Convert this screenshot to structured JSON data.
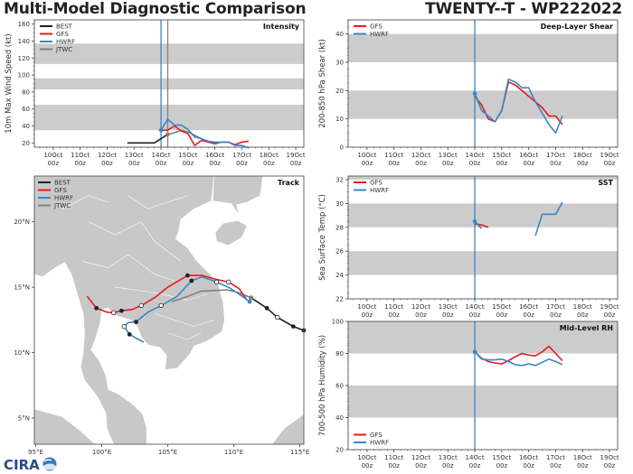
{
  "header": {
    "title": "Multi-Model Diagnostic Comparison",
    "storm": "TWENTY--T - WP222022"
  },
  "logo": {
    "text": "CIRA",
    "icon": "cira-logo-icon"
  },
  "colors": {
    "BEST": "#222222",
    "GFS": "#e41a1c",
    "HWRF": "#3a86c8",
    "JTWC": "#808080",
    "band": "#cccccc",
    "land": "#c8c8c8"
  },
  "time_axis": {
    "days": [
      10,
      11,
      12,
      13,
      14,
      15,
      16,
      17,
      18,
      19
    ],
    "labels": [
      "10Oct",
      "11Oct",
      "12Oct",
      "13Oct",
      "14Oct",
      "15Oct",
      "16Oct",
      "17Oct",
      "18Oct",
      "19Oct"
    ],
    "sublabel": "00z"
  },
  "chart_data": [
    {
      "id": "intensity",
      "type": "line",
      "title": "Intensity",
      "ylabel": "10m Max Wind Speed (kt)",
      "xlabel": "",
      "ylim": [
        15,
        165
      ],
      "yticks": [
        20,
        40,
        60,
        80,
        100,
        120,
        140,
        160
      ],
      "xlim": [
        9.3,
        19.3
      ],
      "bands": [
        [
          35,
          65
        ],
        [
          83,
          96
        ],
        [
          113,
          137
        ]
      ],
      "vlines": [
        {
          "x": 14.0,
          "color": "HWRF"
        },
        {
          "x": 14.25,
          "color": "JTWC"
        }
      ],
      "legend": [
        "BEST",
        "GFS",
        "HWRF",
        "JTWC"
      ],
      "legend_position": "top-left",
      "series": [
        {
          "name": "BEST",
          "x": [
            12.75,
            13.0,
            13.25,
            13.5,
            13.75,
            14.0,
            14.25
          ],
          "y": [
            20,
            20,
            20,
            20,
            20,
            25,
            30
          ]
        },
        {
          "name": "JTWC",
          "x": [
            14.25,
            14.5,
            14.75,
            15.0,
            15.25,
            15.5
          ],
          "y": [
            30,
            32,
            35,
            33,
            29,
            25
          ],
          "marker_first": true
        },
        {
          "name": "GFS",
          "x": [
            14.0,
            14.25,
            14.5,
            14.75,
            15.0,
            15.25,
            15.5,
            15.75,
            16.0,
            16.25,
            16.5,
            16.75,
            17.0,
            17.25
          ],
          "y": [
            35,
            35,
            40,
            34,
            31,
            17,
            23,
            21,
            19,
            21,
            21,
            18,
            21,
            22
          ]
        },
        {
          "name": "HWRF",
          "x": [
            14.0,
            14.25,
            14.5,
            14.75,
            15.0,
            15.25,
            15.5,
            15.75,
            16.0,
            16.25,
            16.5,
            16.75,
            17.0,
            17.25
          ],
          "y": [
            35,
            48,
            41,
            41,
            36,
            27,
            25,
            22,
            21,
            21,
            21,
            17,
            17,
            14
          ],
          "marker_first": true
        }
      ]
    },
    {
      "id": "shear",
      "type": "line",
      "title": "Deep-Layer Shear",
      "ylabel": "200-850 hPa Shear (kt)",
      "xlabel": "",
      "ylim": [
        0,
        45
      ],
      "yticks": [
        0,
        10,
        20,
        30,
        40
      ],
      "xlim": [
        9.3,
        19.3
      ],
      "bands": [
        [
          10,
          20
        ],
        [
          30,
          40
        ]
      ],
      "vlines": [
        {
          "x": 14.0,
          "color": "HWRF"
        }
      ],
      "legend": [
        "GFS",
        "HWRF"
      ],
      "legend_position": "top-left",
      "series": [
        {
          "name": "GFS",
          "x": [
            14.0,
            14.25,
            14.5,
            14.75,
            15.0,
            15.25,
            15.5,
            15.75,
            16.0,
            16.25,
            16.5,
            16.75,
            17.0,
            17.25
          ],
          "y": [
            18,
            15,
            10,
            9,
            13,
            23,
            22,
            20,
            18,
            16,
            14,
            11,
            11,
            8
          ]
        },
        {
          "name": "HWRF",
          "x": [
            14.0,
            14.25,
            14.5,
            14.75,
            15.0,
            15.25,
            15.5,
            15.75,
            16.0,
            16.25,
            16.5,
            16.75,
            17.0,
            17.25
          ],
          "y": [
            19,
            13,
            11,
            9,
            13,
            24,
            23,
            21,
            21,
            16,
            12,
            8,
            5,
            11
          ],
          "marker_first": true
        }
      ]
    },
    {
      "id": "sst",
      "type": "line",
      "title": "SST",
      "ylabel": "Sea Surface Temp (°C)",
      "xlabel": "",
      "ylim": [
        22,
        32.3
      ],
      "yticks": [
        22,
        24,
        26,
        28,
        30,
        32
      ],
      "xlim": [
        9.3,
        19.3
      ],
      "bands": [
        [
          24,
          26
        ],
        [
          28,
          30
        ],
        [
          32,
          32.3
        ]
      ],
      "vlines": [
        {
          "x": 14.0,
          "color": "HWRF"
        }
      ],
      "legend": [
        "GFS",
        "HWRF"
      ],
      "legend_position": "top-left",
      "series": [
        {
          "name": "GFS",
          "x": [
            14.0,
            14.25,
            14.5
          ],
          "y": [
            28.3,
            28.2,
            28.0
          ]
        },
        {
          "name": "HWRF",
          "x": [
            14.0,
            14.25
          ],
          "y": [
            28.5,
            27.9
          ],
          "marker_first": true
        },
        {
          "name": "HWRF",
          "x": [
            16.25,
            16.5,
            16.75,
            17.0,
            17.25
          ],
          "y": [
            27.3,
            29.1,
            29.1,
            29.1,
            30.1
          ]
        }
      ]
    },
    {
      "id": "rh",
      "type": "line",
      "title": "Mid-Level RH",
      "ylabel": "700-500 hPa Humidity (%)",
      "xlabel": "",
      "ylim": [
        20,
        100
      ],
      "yticks": [
        20,
        40,
        60,
        80,
        100
      ],
      "xlim": [
        9.3,
        19.3
      ],
      "bands": [
        [
          40,
          60
        ],
        [
          80,
          100
        ]
      ],
      "vlines": [
        {
          "x": 14.0,
          "color": "HWRF"
        }
      ],
      "legend": [
        "GFS",
        "HWRF"
      ],
      "legend_position": "bottom-left",
      "series": [
        {
          "name": "GFS",
          "x": [
            14.0,
            14.25,
            14.5,
            14.75,
            15.0,
            15.25,
            15.5,
            15.75,
            16.0,
            16.25,
            16.5,
            16.75,
            17.0,
            17.25
          ],
          "y": [
            81,
            77,
            75,
            74,
            73.5,
            75.5,
            78,
            80,
            79,
            78.5,
            81,
            84.5,
            80,
            75.5
          ]
        },
        {
          "name": "HWRF",
          "x": [
            14.0,
            14.25,
            14.5,
            14.75,
            15.0,
            15.25,
            15.5,
            15.75,
            16.0,
            16.25,
            16.5,
            16.75,
            17.0,
            17.25
          ],
          "y": [
            81,
            76.5,
            76,
            76,
            76.5,
            75,
            73,
            72.5,
            73.5,
            72.5,
            74.5,
            76.5,
            75,
            73
          ],
          "marker_first": true
        }
      ]
    },
    {
      "id": "track",
      "type": "scatter",
      "title": "Track",
      "xlabel": "",
      "ylabel": "",
      "xlim": [
        94.9,
        115.3
      ],
      "ylim": [
        3.0,
        23.5
      ],
      "xticks": [
        95,
        100,
        105,
        110,
        115
      ],
      "xticklabels": [
        "95°E",
        "100°E",
        "105°E",
        "110°E",
        "115°E"
      ],
      "yticks": [
        5,
        10,
        15,
        20
      ],
      "yticklabels": [
        "5°N",
        "10°N",
        "15°N",
        "20°N"
      ],
      "legend": [
        "BEST",
        "GFS",
        "HWRF",
        "JTWC"
      ],
      "legend_position": "top-left",
      "series": [
        {
          "name": "BEST",
          "lon": [
            111.3,
            112.5,
            113.3,
            114.5,
            115.3
          ],
          "lat": [
            14.2,
            13.4,
            12.7,
            12.0,
            11.7
          ],
          "markers": [
            "filled",
            "filled",
            "open",
            "filled",
            "filled"
          ]
        },
        {
          "name": "JTWC",
          "lon": [
            105.3,
            106.5,
            107.5,
            108.5,
            109.5,
            110.3,
            111.3
          ],
          "lat": [
            13.9,
            14.3,
            14.7,
            14.75,
            14.8,
            14.6,
            14.2
          ],
          "markers": [
            "",
            "",
            "",
            "",
            "",
            "",
            "filled"
          ]
        },
        {
          "name": "GFS",
          "lon": [
            98.9,
            99.6,
            100.4,
            100.9,
            101.5,
            102.3,
            103.0,
            104.0,
            105.0,
            106.5,
            107.6,
            108.7,
            109.6,
            110.4,
            111.0
          ],
          "lat": [
            14.3,
            13.4,
            13.1,
            13.05,
            13.2,
            13.3,
            13.6,
            14.2,
            15.0,
            15.9,
            15.9,
            15.6,
            15.4,
            14.9,
            14.0
          ],
          "markers": [
            "",
            "filled",
            "",
            "open",
            "filled",
            "",
            "open",
            "",
            "",
            "filled",
            "",
            "",
            "open",
            "",
            ""
          ]
        },
        {
          "name": "HWRF",
          "lon": [
            103.2,
            102.6,
            102.1,
            101.7,
            102.0,
            102.6,
            103.5,
            104.5,
            105.7,
            106.8,
            107.6,
            108.7,
            109.6,
            110.5,
            111.2
          ],
          "lat": [
            10.8,
            11.1,
            11.4,
            12.0,
            12.3,
            12.35,
            13.1,
            13.6,
            14.3,
            15.5,
            15.8,
            15.4,
            15.0,
            14.4,
            13.9
          ],
          "markers": [
            "",
            "",
            "filled",
            "open",
            "",
            "filled",
            "",
            "open",
            "",
            "filled",
            "",
            "open",
            "",
            "",
            "filled"
          ]
        }
      ]
    }
  ]
}
